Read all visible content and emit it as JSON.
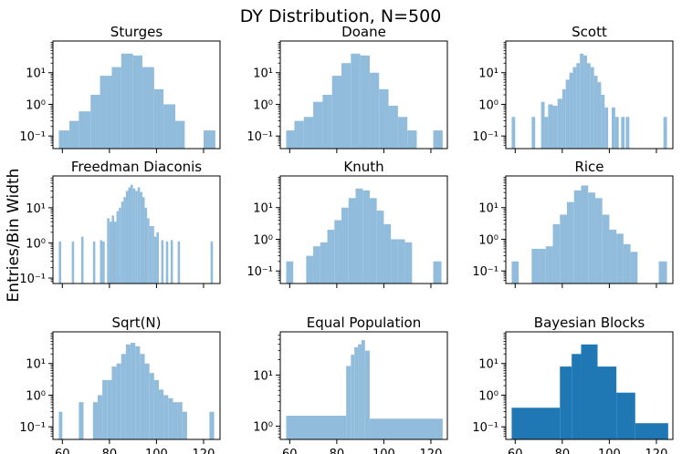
{
  "figure": {
    "title": "DY Distribution, N=500",
    "ylabel": "Entries/Bin Width"
  },
  "colors": {
    "light": "#91bcdb",
    "dark": "#1f77b4",
    "axis": "#000000"
  },
  "chart_data": [
    {
      "type": "bar",
      "title": "Sturges",
      "scale": "log",
      "style": "light",
      "xlim": [
        56,
        127
      ],
      "ylim": [
        0.04,
        100
      ],
      "yticks": [
        {
          "v": 0.1,
          "label": "10⁻¹"
        },
        {
          "v": 1,
          "label": "10⁰"
        },
        {
          "v": 10,
          "label": "10¹"
        }
      ],
      "xticks": [
        {
          "v": 60,
          "label": ""
        },
        {
          "v": 80,
          "label": ""
        },
        {
          "v": 100,
          "label": ""
        },
        {
          "v": 120,
          "label": ""
        }
      ],
      "bins": [
        [
          58.5,
          63,
          0.15
        ],
        [
          63,
          67,
          0.3
        ],
        [
          67,
          72,
          0.6
        ],
        [
          72,
          76,
          2
        ],
        [
          76,
          81,
          8
        ],
        [
          81,
          85,
          15
        ],
        [
          85,
          90,
          40
        ],
        [
          90,
          94,
          35
        ],
        [
          94,
          99,
          15
        ],
        [
          99,
          103,
          3
        ],
        [
          103,
          108,
          1
        ],
        [
          108,
          112,
          0.3
        ],
        [
          120,
          125,
          0.15
        ]
      ]
    },
    {
      "type": "bar",
      "title": "Doane",
      "scale": "log",
      "style": "light",
      "xlim": [
        56,
        127
      ],
      "ylim": [
        0.04,
        100
      ],
      "yticks": [
        {
          "v": 0.1,
          "label": "10⁻¹"
        },
        {
          "v": 1,
          "label": "10⁰"
        },
        {
          "v": 10,
          "label": "10¹"
        }
      ],
      "xticks": [
        {
          "v": 60,
          "label": ""
        },
        {
          "v": 80,
          "label": ""
        },
        {
          "v": 100,
          "label": ""
        },
        {
          "v": 120,
          "label": ""
        }
      ],
      "bins": [
        [
          58.5,
          62,
          0.15
        ],
        [
          62,
          66,
          0.3
        ],
        [
          66,
          70,
          0.4
        ],
        [
          70,
          74,
          1.2
        ],
        [
          74,
          78,
          2
        ],
        [
          78,
          82,
          8
        ],
        [
          82,
          86,
          20
        ],
        [
          86,
          90,
          40
        ],
        [
          90,
          94,
          35
        ],
        [
          94,
          98,
          10
        ],
        [
          98,
          102,
          3
        ],
        [
          102,
          106,
          0.9
        ],
        [
          106,
          110,
          0.4
        ],
        [
          110,
          114,
          0.15
        ],
        [
          121,
          125,
          0.15
        ]
      ]
    },
    {
      "type": "bar",
      "title": "Scott",
      "scale": "log",
      "style": "light",
      "xlim": [
        56,
        127
      ],
      "ylim": [
        0.04,
        100
      ],
      "yticks": [
        {
          "v": 0.1,
          "label": "10⁻¹"
        },
        {
          "v": 1,
          "label": "10⁰"
        },
        {
          "v": 10,
          "label": "10¹"
        }
      ],
      "xticks": [
        {
          "v": 60,
          "label": ""
        },
        {
          "v": 80,
          "label": ""
        },
        {
          "v": 100,
          "label": ""
        },
        {
          "v": 120,
          "label": ""
        }
      ],
      "bins": [
        [
          58.5,
          60,
          0.4
        ],
        [
          67,
          68.5,
          0.4
        ],
        [
          71,
          72.5,
          1.2
        ],
        [
          72.5,
          74,
          0.4
        ],
        [
          74,
          76,
          1
        ],
        [
          76,
          78,
          0.9
        ],
        [
          78,
          80,
          1.5
        ],
        [
          80,
          81.5,
          3
        ],
        [
          81.5,
          83,
          6
        ],
        [
          83,
          84.5,
          10
        ],
        [
          84.5,
          86,
          15
        ],
        [
          86,
          87.5,
          20
        ],
        [
          87.5,
          89,
          40
        ],
        [
          89,
          90.5,
          35
        ],
        [
          90.5,
          92,
          20
        ],
        [
          92,
          93.5,
          15
        ],
        [
          93.5,
          95,
          8
        ],
        [
          95,
          96.5,
          5
        ],
        [
          96.5,
          98,
          2
        ],
        [
          98,
          99.5,
          0.8
        ],
        [
          101,
          102.5,
          0.8
        ],
        [
          102.5,
          104,
          0.4
        ],
        [
          105,
          106.5,
          0.4
        ],
        [
          107,
          108.5,
          0.4
        ],
        [
          123,
          124.5,
          0.4
        ]
      ]
    },
    {
      "type": "bar",
      "title": "Freedman Diaconis",
      "scale": "log",
      "style": "light",
      "xlim": [
        56,
        127
      ],
      "ylim": [
        0.07,
        80
      ],
      "yticks": [
        {
          "v": 0.1,
          "label": "10⁻¹"
        },
        {
          "v": 1,
          "label": "10⁰"
        },
        {
          "v": 10,
          "label": "10¹"
        }
      ],
      "xticks": [
        {
          "v": 60,
          "label": ""
        },
        {
          "v": 80,
          "label": ""
        },
        {
          "v": 100,
          "label": ""
        },
        {
          "v": 120,
          "label": ""
        }
      ],
      "bins": [
        [
          58.5,
          59.5,
          1.1
        ],
        [
          64,
          65,
          1.1
        ],
        [
          68,
          69,
          1.5
        ],
        [
          73,
          74,
          1.1
        ],
        [
          76,
          77,
          1.2
        ],
        [
          77,
          78,
          1.1
        ],
        [
          79,
          80,
          5
        ],
        [
          80,
          81,
          4
        ],
        [
          81,
          82,
          6
        ],
        [
          82,
          83,
          4
        ],
        [
          83,
          84,
          8
        ],
        [
          84,
          85,
          10
        ],
        [
          85,
          86,
          15
        ],
        [
          86,
          87,
          20
        ],
        [
          87,
          88,
          30
        ],
        [
          88,
          89,
          38
        ],
        [
          89,
          90,
          45
        ],
        [
          90,
          91,
          35
        ],
        [
          91,
          92,
          30
        ],
        [
          92,
          93,
          38
        ],
        [
          93,
          94,
          28
        ],
        [
          94,
          95,
          20
        ],
        [
          95,
          96,
          10
        ],
        [
          96,
          97,
          5
        ],
        [
          97,
          98,
          3
        ],
        [
          98,
          99,
          3
        ],
        [
          99,
          100,
          1.5
        ],
        [
          100,
          101,
          2
        ],
        [
          102,
          103,
          1.2
        ],
        [
          104,
          105,
          1.1
        ],
        [
          106,
          107,
          1.2
        ],
        [
          109,
          110,
          1.1
        ],
        [
          123,
          124,
          1.1
        ]
      ]
    },
    {
      "type": "bar",
      "title": "Knuth",
      "scale": "log",
      "style": "light",
      "xlim": [
        56,
        127
      ],
      "ylim": [
        0.04,
        100
      ],
      "yticks": [
        {
          "v": 0.1,
          "label": "10⁻¹"
        },
        {
          "v": 1,
          "label": "10⁰"
        },
        {
          "v": 10,
          "label": "10¹"
        }
      ],
      "xticks": [
        {
          "v": 60,
          "label": ""
        },
        {
          "v": 80,
          "label": ""
        },
        {
          "v": 100,
          "label": ""
        },
        {
          "v": 120,
          "label": ""
        }
      ],
      "bins": [
        [
          58.5,
          61.5,
          0.2
        ],
        [
          67,
          70,
          0.3
        ],
        [
          70,
          73,
          0.6
        ],
        [
          73,
          76,
          0.8
        ],
        [
          76,
          79,
          2
        ],
        [
          79,
          82,
          4
        ],
        [
          82,
          85,
          10
        ],
        [
          85,
          88,
          20
        ],
        [
          88,
          91,
          40
        ],
        [
          91,
          94,
          35
        ],
        [
          94,
          97,
          20
        ],
        [
          97,
          100,
          8
        ],
        [
          100,
          103,
          3
        ],
        [
          103,
          106,
          1
        ],
        [
          106,
          109,
          1
        ],
        [
          109,
          112,
          0.8
        ],
        [
          121,
          124.5,
          0.2
        ]
      ]
    },
    {
      "type": "bar",
      "title": "Rice",
      "scale": "log",
      "style": "light",
      "xlim": [
        56,
        127
      ],
      "ylim": [
        0.04,
        100
      ],
      "yticks": [
        {
          "v": 0.1,
          "label": "10⁻¹"
        },
        {
          "v": 1,
          "label": "10⁰"
        },
        {
          "v": 10,
          "label": "10¹"
        }
      ],
      "xticks": [
        {
          "v": 60,
          "label": ""
        },
        {
          "v": 80,
          "label": ""
        },
        {
          "v": 100,
          "label": ""
        },
        {
          "v": 120,
          "label": ""
        }
      ],
      "bins": [
        [
          58.5,
          61.5,
          0.2
        ],
        [
          67,
          70,
          0.5
        ],
        [
          70,
          73,
          0.5
        ],
        [
          73,
          76,
          0.6
        ],
        [
          76,
          79,
          3
        ],
        [
          79,
          82,
          6
        ],
        [
          82,
          85,
          15
        ],
        [
          85,
          88,
          35
        ],
        [
          88,
          91,
          50
        ],
        [
          91,
          94,
          30
        ],
        [
          94,
          97,
          20
        ],
        [
          97,
          100,
          6
        ],
        [
          100,
          103,
          2
        ],
        [
          103,
          106,
          1.5
        ],
        [
          106,
          109,
          0.7
        ],
        [
          109,
          112,
          0.4
        ],
        [
          121,
          124.5,
          0.2
        ]
      ]
    },
    {
      "type": "bar",
      "title": "Sqrt(N)",
      "scale": "log",
      "style": "light",
      "xlim": [
        56,
        127
      ],
      "ylim": [
        0.04,
        100
      ],
      "yticks": [
        {
          "v": 0.1,
          "label": "10⁻¹"
        },
        {
          "v": 1,
          "label": "10⁰"
        },
        {
          "v": 10,
          "label": "10¹"
        }
      ],
      "xticks": [
        {
          "v": 60,
          "label": "60"
        },
        {
          "v": 80,
          "label": "80"
        },
        {
          "v": 100,
          "label": "100"
        },
        {
          "v": 120,
          "label": "120"
        }
      ],
      "bins": [
        [
          58.5,
          60,
          0.3
        ],
        [
          67,
          69,
          0.6
        ],
        [
          73,
          75,
          0.6
        ],
        [
          75,
          77,
          1
        ],
        [
          77,
          79,
          3
        ],
        [
          79,
          81,
          3
        ],
        [
          81,
          83,
          8
        ],
        [
          83,
          85,
          10
        ],
        [
          85,
          87,
          20
        ],
        [
          87,
          89,
          40
        ],
        [
          89,
          91,
          45
        ],
        [
          91,
          93,
          35
        ],
        [
          93,
          95,
          20
        ],
        [
          95,
          97,
          10
        ],
        [
          97,
          99,
          5
        ],
        [
          99,
          101,
          3
        ],
        [
          101,
          103,
          1.5
        ],
        [
          103,
          105,
          1
        ],
        [
          105,
          107,
          0.8
        ],
        [
          107,
          109,
          0.6
        ],
        [
          109,
          111,
          0.6
        ],
        [
          111,
          113,
          0.3
        ],
        [
          122.5,
          124.5,
          0.3
        ]
      ]
    },
    {
      "type": "bar",
      "title": "Equal Population",
      "scale": "log",
      "style": "light",
      "xlim": [
        56,
        127
      ],
      "ylim": [
        0.55,
        70
      ],
      "yticks": [
        {
          "v": 1,
          "label": "10⁰"
        },
        {
          "v": 10,
          "label": "10¹"
        }
      ],
      "xticks": [
        {
          "v": 60,
          "label": "60"
        },
        {
          "v": 80,
          "label": "80"
        },
        {
          "v": 100,
          "label": "100"
        },
        {
          "v": 120,
          "label": "120"
        }
      ],
      "bins": [
        [
          58.5,
          84,
          1.6
        ],
        [
          84,
          86,
          15
        ],
        [
          86,
          87.5,
          25
        ],
        [
          87.5,
          89,
          35
        ],
        [
          89,
          90.5,
          40
        ],
        [
          90.5,
          92,
          48
        ],
        [
          92,
          94,
          30
        ],
        [
          94,
          125,
          1.4
        ]
      ]
    },
    {
      "type": "bar",
      "title": "Bayesian Blocks",
      "scale": "log",
      "style": "dark",
      "xlim": [
        56,
        127
      ],
      "ylim": [
        0.04,
        100
      ],
      "yticks": [
        {
          "v": 0.1,
          "label": "10⁻¹"
        },
        {
          "v": 1,
          "label": "10⁰"
        },
        {
          "v": 10,
          "label": "10¹"
        }
      ],
      "xticks": [
        {
          "v": 60,
          "label": "60"
        },
        {
          "v": 80,
          "label": "80"
        },
        {
          "v": 100,
          "label": "100"
        },
        {
          "v": 120,
          "label": "120"
        }
      ],
      "bins": [
        [
          58.5,
          79,
          0.4
        ],
        [
          79,
          84,
          8
        ],
        [
          84,
          88,
          20
        ],
        [
          88,
          95,
          40
        ],
        [
          95,
          103,
          8
        ],
        [
          103,
          111,
          1.2
        ],
        [
          111,
          125,
          0.13
        ]
      ]
    }
  ]
}
